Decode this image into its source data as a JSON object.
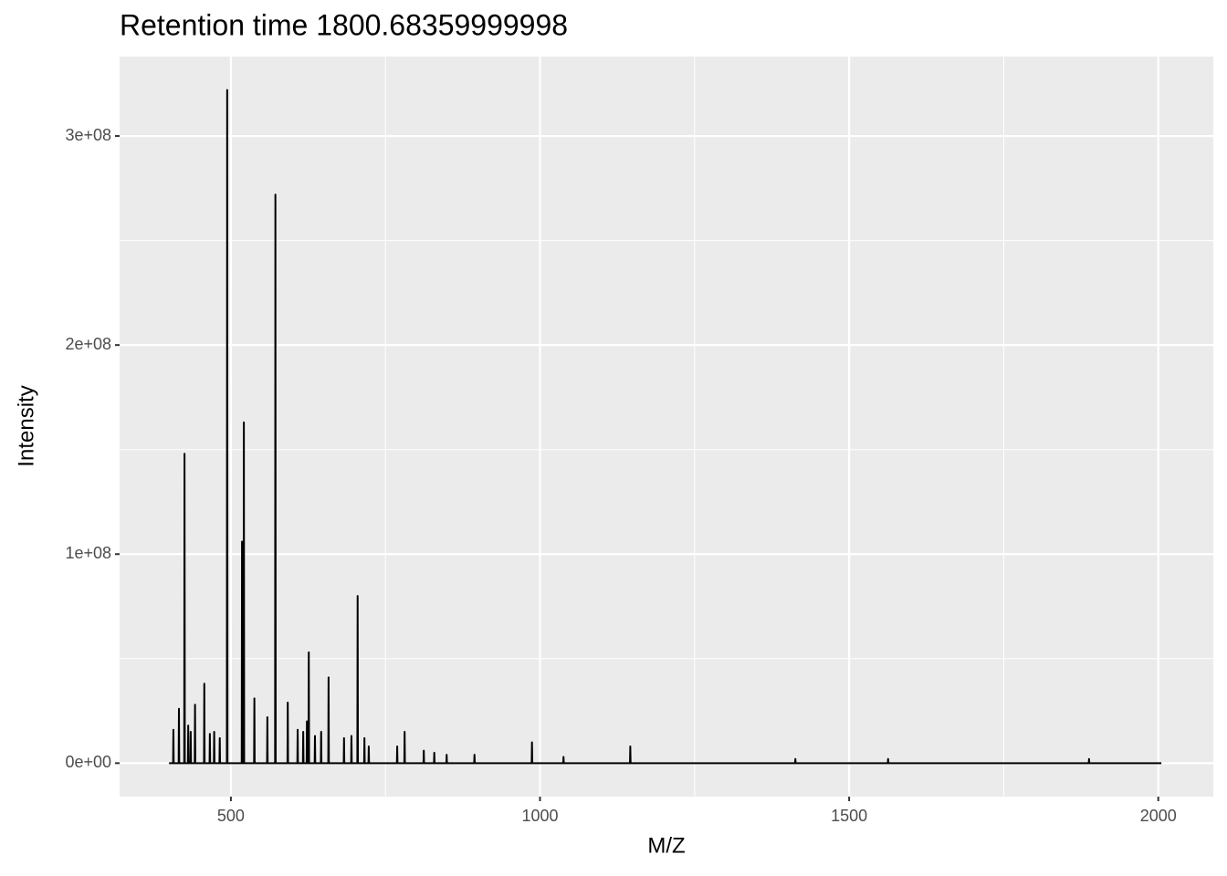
{
  "chart_data": {
    "type": "line",
    "title": "Retention time 1800.68359999998",
    "x_label": "M/Z",
    "y_label": "Intensity",
    "xlim": [
      320,
      2089
    ],
    "ylim": [
      -16000000,
      338000000
    ],
    "xticks": [
      500,
      1000,
      1500,
      2000
    ],
    "yticks": [
      {
        "value": 0,
        "label": "0e+00"
      },
      {
        "value": 100000000,
        "label": "1e+08"
      },
      {
        "value": 200000000,
        "label": "2e+08"
      },
      {
        "value": 300000000,
        "label": "3e+08"
      }
    ],
    "xminorticks": [
      750,
      1250,
      1750
    ],
    "yminorticks": [
      50000000,
      150000000,
      250000000
    ],
    "grid": true,
    "color": "#000000",
    "x": [
      400,
      406.5,
      407,
      407.5,
      415.5,
      416,
      416.5,
      424.5,
      425,
      425.5,
      430.5,
      431,
      431.5,
      434.5,
      435,
      435.5,
      441.5,
      442,
      442.5,
      456.5,
      457,
      457.5,
      465.5,
      466,
      466.5,
      472.5,
      473,
      473.5,
      481.5,
      482,
      482.5,
      493.5,
      494,
      494.5,
      517.5,
      518,
      518.5,
      520.5,
      521,
      521.5,
      537.5,
      538,
      538.5,
      558.5,
      559,
      559.5,
      571.5,
      572,
      572.5,
      591.5,
      592,
      592.5,
      607.5,
      608,
      608.5,
      616.5,
      617,
      617.5,
      622.5,
      623,
      623.5,
      625.5,
      626,
      626.5,
      635.5,
      636,
      636.5,
      645.5,
      646,
      646.5,
      657.5,
      658,
      658.5,
      682.5,
      683,
      683.5,
      694.5,
      695,
      695.5,
      704.5,
      705,
      705.5,
      715.5,
      716,
      716.5,
      722.5,
      723,
      723.5,
      768.5,
      769,
      769.5,
      780.5,
      781,
      781.5,
      811.5,
      812,
      812.5,
      828.5,
      829,
      829.5,
      848.5,
      849,
      849.5,
      893.5,
      894,
      894.5,
      986.5,
      987,
      987.5,
      1037.5,
      1038,
      1038.5,
      1145.5,
      1146,
      1146.5,
      1412.5,
      1413,
      1413.5,
      1562.5,
      1563,
      1563.5,
      1887.5,
      1888,
      1888.5,
      2005
    ],
    "values": [
      0,
      0,
      16000000,
      0,
      0,
      26000000,
      0,
      0,
      148000000,
      0,
      0,
      18000000,
      0,
      0,
      15000000,
      0,
      0,
      28000000,
      0,
      0,
      38000000,
      0,
      0,
      14000000,
      0,
      0,
      15000000,
      0,
      0,
      12000000,
      0,
      0,
      322000000,
      0,
      0,
      106000000,
      0,
      0,
      163000000,
      0,
      0,
      31000000,
      0,
      0,
      22000000,
      0,
      0,
      272000000,
      0,
      0,
      29000000,
      0,
      0,
      16000000,
      0,
      0,
      15000000,
      0,
      0,
      20000000,
      0,
      0,
      53000000,
      0,
      0,
      13000000,
      0,
      0,
      15000000,
      0,
      0,
      41000000,
      0,
      0,
      12000000,
      0,
      0,
      13000000,
      0,
      0,
      80000000,
      0,
      0,
      12000000,
      0,
      0,
      8000000,
      0,
      0,
      8000000,
      0,
      0,
      15000000,
      0,
      0,
      6000000,
      0,
      0,
      5000000,
      0,
      0,
      4000000,
      0,
      0,
      4000000,
      0,
      0,
      10000000,
      0,
      0,
      3000000,
      0,
      0,
      8000000,
      0,
      0,
      2000000,
      0,
      0,
      2000000,
      0,
      0,
      2000000,
      0,
      0
    ]
  }
}
